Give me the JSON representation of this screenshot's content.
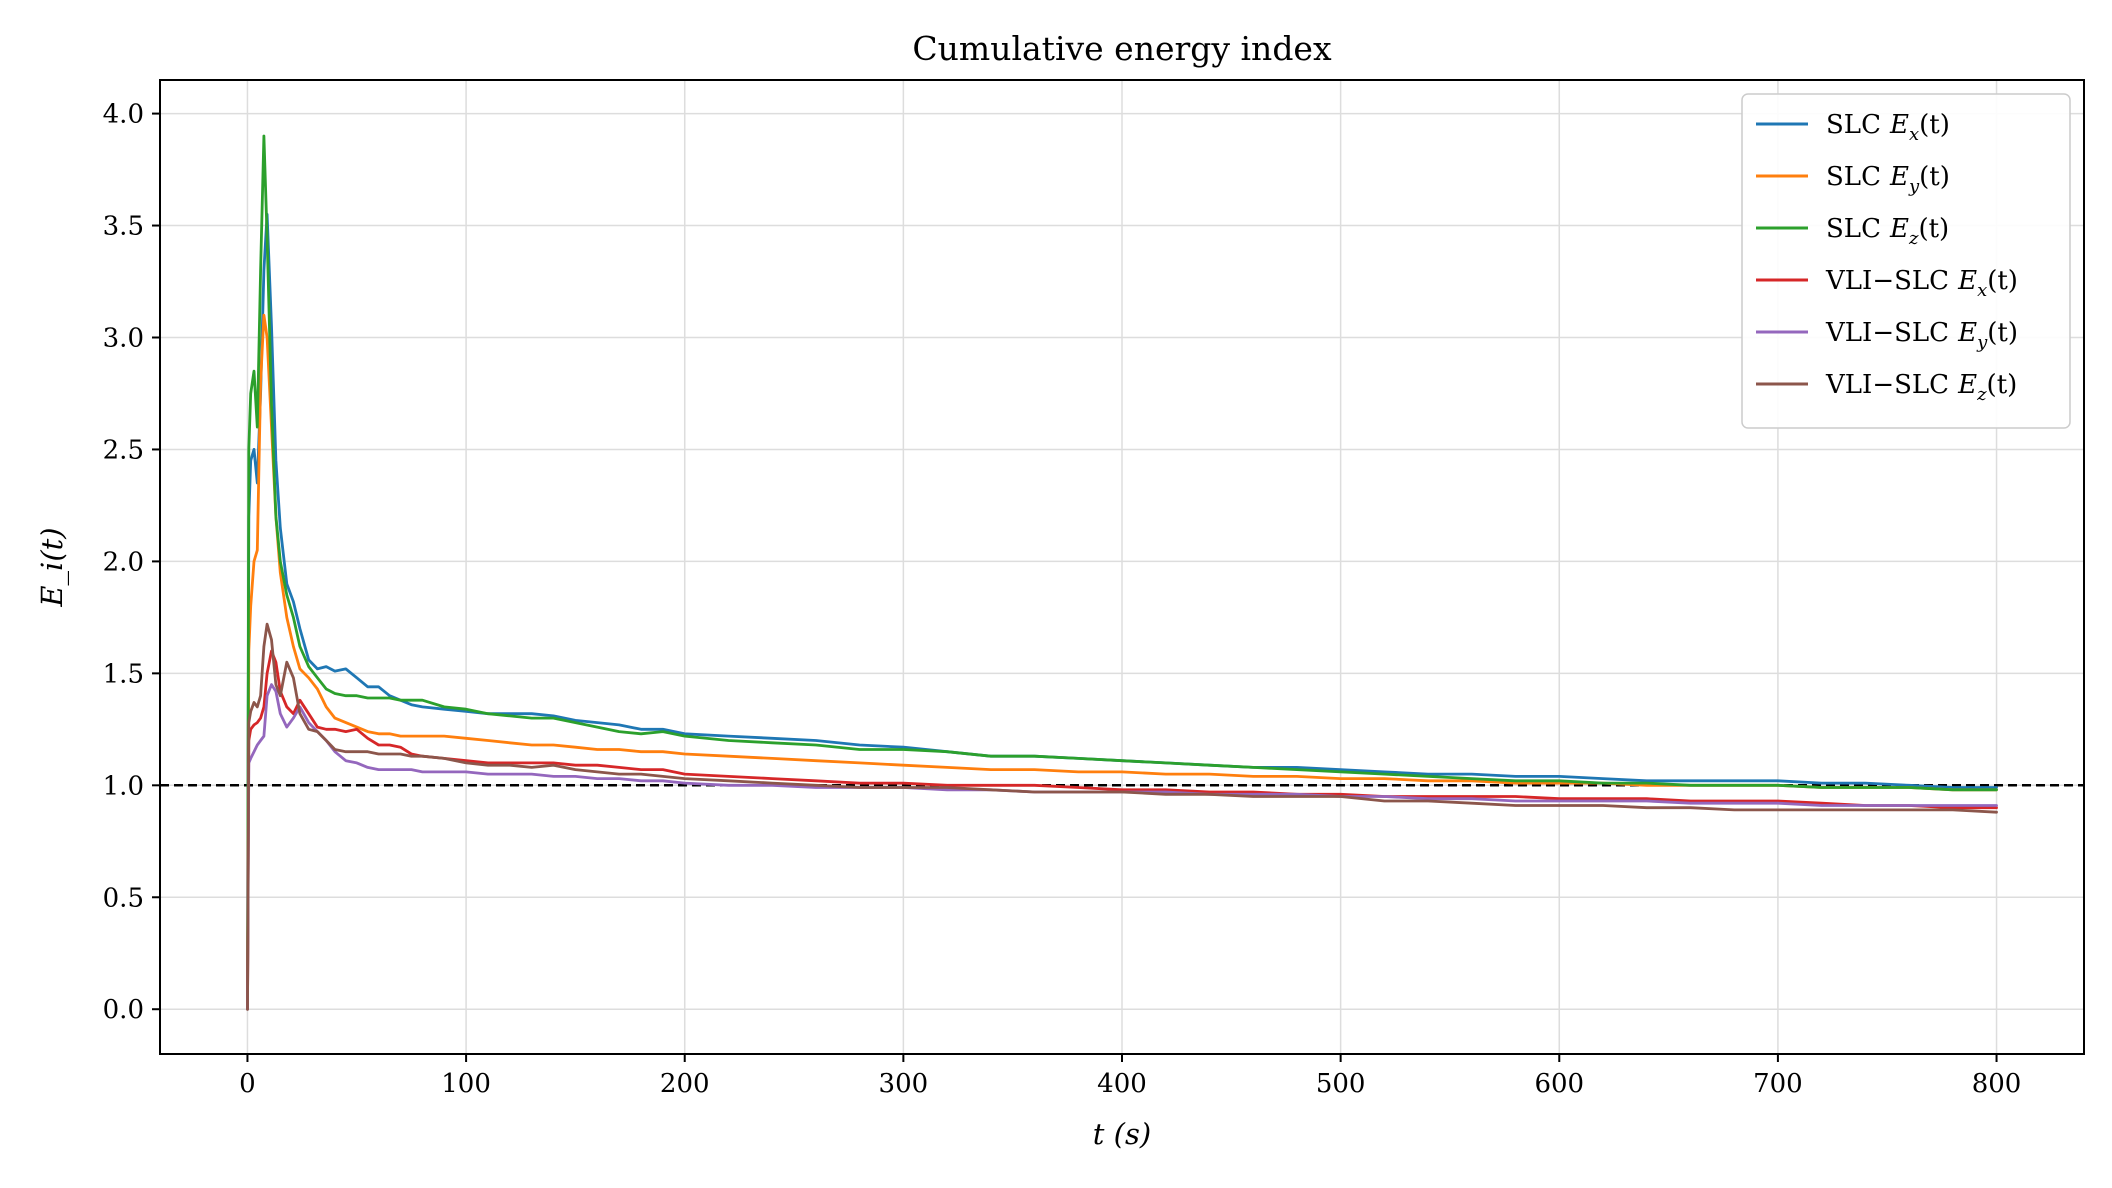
{
  "chart_data": {
    "type": "line",
    "title": "Cumulative energy index",
    "xlabel": "t (s)",
    "ylabel": "E_i(t)",
    "xlim": [
      -40,
      840
    ],
    "ylim": [
      -0.2,
      4.15
    ],
    "grid": true,
    "legend_position": "top-right",
    "x_ticks": [
      0,
      100,
      200,
      300,
      400,
      500,
      600,
      700,
      800
    ],
    "x_tick_labels": [
      "0",
      "100",
      "200",
      "300",
      "400",
      "500",
      "600",
      "700",
      "800"
    ],
    "y_ticks": [
      0.0,
      0.5,
      1.0,
      1.5,
      2.0,
      2.5,
      3.0,
      3.5,
      4.0
    ],
    "y_tick_labels": [
      "0.0",
      "0.5",
      "1.0",
      "1.5",
      "2.0",
      "2.5",
      "3.0",
      "3.5",
      "4.0"
    ],
    "reference_line": {
      "y": 1.0,
      "style": "dashed",
      "color": "#000000"
    },
    "series": [
      {
        "name": "SLC E_x(t)",
        "legend": "SLC",
        "sym": "E",
        "sub": "x",
        "arg": "(t)",
        "color": "#1f77b4",
        "x": [
          0,
          0.6,
          1.5,
          3,
          4.5,
          6,
          7.5,
          9,
          11,
          13,
          15,
          18,
          21,
          24,
          28,
          32,
          36,
          40,
          45,
          50,
          55,
          60,
          65,
          70,
          75,
          80,
          90,
          100,
          110,
          120,
          130,
          140,
          150,
          160,
          170,
          180,
          190,
          200,
          220,
          240,
          260,
          280,
          300,
          320,
          340,
          360,
          380,
          400,
          420,
          440,
          460,
          480,
          500,
          520,
          540,
          560,
          580,
          600,
          620,
          640,
          660,
          680,
          700,
          720,
          740,
          760,
          780,
          800
        ],
        "y": [
          0,
          2.2,
          2.45,
          2.5,
          2.35,
          2.75,
          3.3,
          3.55,
          3.05,
          2.45,
          2.15,
          1.9,
          1.82,
          1.7,
          1.56,
          1.52,
          1.53,
          1.51,
          1.52,
          1.48,
          1.44,
          1.44,
          1.4,
          1.38,
          1.36,
          1.35,
          1.34,
          1.33,
          1.32,
          1.32,
          1.32,
          1.31,
          1.29,
          1.28,
          1.27,
          1.25,
          1.25,
          1.23,
          1.22,
          1.21,
          1.2,
          1.18,
          1.17,
          1.15,
          1.13,
          1.13,
          1.12,
          1.11,
          1.1,
          1.09,
          1.08,
          1.08,
          1.07,
          1.06,
          1.05,
          1.05,
          1.04,
          1.04,
          1.03,
          1.02,
          1.02,
          1.02,
          1.02,
          1.01,
          1.01,
          1.0,
          0.99,
          0.99
        ]
      },
      {
        "name": "SLC E_y(t)",
        "legend": "SLC",
        "sym": "E",
        "sub": "y",
        "arg": "(t)",
        "color": "#ff7f0e",
        "x": [
          0,
          0.6,
          1.5,
          3,
          4.5,
          6,
          7.5,
          9,
          11,
          13,
          15,
          18,
          21,
          24,
          28,
          32,
          36,
          40,
          45,
          50,
          55,
          60,
          65,
          70,
          75,
          80,
          90,
          100,
          110,
          120,
          130,
          140,
          150,
          160,
          170,
          180,
          190,
          200,
          220,
          240,
          260,
          280,
          300,
          320,
          340,
          360,
          380,
          400,
          420,
          440,
          460,
          480,
          500,
          520,
          540,
          560,
          580,
          600,
          620,
          640,
          660,
          680,
          700,
          720,
          740,
          760,
          780,
          800
        ],
        "y": [
          0,
          1.6,
          1.8,
          2.0,
          2.05,
          2.8,
          3.1,
          3.0,
          2.6,
          2.2,
          1.95,
          1.75,
          1.62,
          1.52,
          1.48,
          1.43,
          1.35,
          1.3,
          1.28,
          1.26,
          1.24,
          1.23,
          1.23,
          1.22,
          1.22,
          1.22,
          1.22,
          1.21,
          1.2,
          1.19,
          1.18,
          1.18,
          1.17,
          1.16,
          1.16,
          1.15,
          1.15,
          1.14,
          1.13,
          1.12,
          1.11,
          1.1,
          1.09,
          1.08,
          1.07,
          1.07,
          1.06,
          1.06,
          1.05,
          1.05,
          1.04,
          1.04,
          1.03,
          1.03,
          1.02,
          1.02,
          1.01,
          1.01,
          1.01,
          1.0,
          1.0,
          1.0,
          1.0,
          0.99,
          0.99,
          0.99,
          0.98,
          0.98
        ]
      },
      {
        "name": "SLC E_z(t)",
        "legend": "SLC",
        "sym": "E",
        "sub": "z",
        "arg": "(t)",
        "color": "#2ca02c",
        "x": [
          0,
          0.6,
          1.5,
          3,
          4.5,
          6,
          7.5,
          9,
          11,
          13,
          15,
          18,
          21,
          24,
          28,
          32,
          36,
          40,
          45,
          50,
          55,
          60,
          65,
          70,
          75,
          80,
          90,
          100,
          110,
          120,
          130,
          140,
          150,
          160,
          170,
          180,
          190,
          200,
          220,
          240,
          260,
          280,
          300,
          320,
          340,
          360,
          380,
          400,
          420,
          440,
          460,
          480,
          500,
          520,
          540,
          560,
          580,
          600,
          620,
          640,
          660,
          680,
          700,
          720,
          740,
          760,
          780,
          800
        ],
        "y": [
          0,
          2.5,
          2.75,
          2.85,
          2.6,
          3.3,
          3.9,
          3.45,
          2.7,
          2.2,
          2.0,
          1.85,
          1.75,
          1.62,
          1.53,
          1.48,
          1.43,
          1.41,
          1.4,
          1.4,
          1.39,
          1.39,
          1.39,
          1.38,
          1.38,
          1.38,
          1.35,
          1.34,
          1.32,
          1.31,
          1.3,
          1.3,
          1.28,
          1.26,
          1.24,
          1.23,
          1.24,
          1.22,
          1.2,
          1.19,
          1.18,
          1.16,
          1.16,
          1.15,
          1.13,
          1.13,
          1.12,
          1.11,
          1.1,
          1.09,
          1.08,
          1.07,
          1.06,
          1.05,
          1.04,
          1.03,
          1.02,
          1.02,
          1.01,
          1.01,
          1.0,
          1.0,
          1.0,
          0.99,
          0.99,
          0.99,
          0.98,
          0.98
        ]
      },
      {
        "name": "VLI-SLC E_x(t)",
        "legend": "VLI−SLC",
        "sym": "E",
        "sub": "x",
        "arg": "(t)",
        "color": "#d62728",
        "x": [
          0,
          0.6,
          1.5,
          3,
          4.5,
          6,
          7.5,
          9,
          11,
          13,
          15,
          18,
          21,
          24,
          28,
          32,
          36,
          40,
          45,
          50,
          55,
          60,
          65,
          70,
          75,
          80,
          90,
          100,
          110,
          120,
          130,
          140,
          150,
          160,
          170,
          180,
          190,
          200,
          220,
          240,
          260,
          280,
          300,
          320,
          340,
          360,
          380,
          400,
          420,
          440,
          460,
          480,
          500,
          520,
          540,
          560,
          580,
          600,
          620,
          640,
          660,
          680,
          700,
          720,
          740,
          760,
          780,
          800
        ],
        "y": [
          0,
          1.2,
          1.25,
          1.27,
          1.28,
          1.3,
          1.35,
          1.5,
          1.6,
          1.55,
          1.42,
          1.35,
          1.32,
          1.38,
          1.32,
          1.26,
          1.25,
          1.25,
          1.24,
          1.25,
          1.21,
          1.18,
          1.18,
          1.17,
          1.14,
          1.13,
          1.12,
          1.11,
          1.1,
          1.1,
          1.1,
          1.1,
          1.09,
          1.09,
          1.08,
          1.07,
          1.07,
          1.05,
          1.04,
          1.03,
          1.02,
          1.01,
          1.01,
          1.0,
          1.0,
          1.0,
          0.99,
          0.98,
          0.98,
          0.97,
          0.97,
          0.96,
          0.96,
          0.95,
          0.95,
          0.95,
          0.95,
          0.94,
          0.94,
          0.94,
          0.93,
          0.93,
          0.93,
          0.92,
          0.91,
          0.91,
          0.9,
          0.9
        ]
      },
      {
        "name": "VLI-SLC E_y(t)",
        "legend": "VLI−SLC",
        "sym": "E",
        "sub": "y",
        "arg": "(t)",
        "color": "#9467bd",
        "x": [
          0,
          0.6,
          1.5,
          3,
          4.5,
          6,
          7.5,
          9,
          11,
          13,
          15,
          18,
          21,
          24,
          28,
          32,
          36,
          40,
          45,
          50,
          55,
          60,
          65,
          70,
          75,
          80,
          90,
          100,
          110,
          120,
          130,
          140,
          150,
          160,
          170,
          180,
          190,
          200,
          220,
          240,
          260,
          280,
          300,
          320,
          340,
          360,
          380,
          400,
          420,
          440,
          460,
          480,
          500,
          520,
          540,
          560,
          580,
          600,
          620,
          640,
          660,
          680,
          700,
          720,
          740,
          760,
          780,
          800
        ],
        "y": [
          0,
          1.1,
          1.12,
          1.15,
          1.18,
          1.2,
          1.22,
          1.4,
          1.45,
          1.42,
          1.32,
          1.26,
          1.3,
          1.35,
          1.28,
          1.24,
          1.2,
          1.15,
          1.11,
          1.1,
          1.08,
          1.07,
          1.07,
          1.07,
          1.07,
          1.06,
          1.06,
          1.06,
          1.05,
          1.05,
          1.05,
          1.04,
          1.04,
          1.03,
          1.03,
          1.02,
          1.02,
          1.01,
          1.0,
          1.0,
          0.99,
          0.99,
          0.99,
          0.98,
          0.98,
          0.97,
          0.97,
          0.97,
          0.97,
          0.96,
          0.96,
          0.96,
          0.95,
          0.95,
          0.94,
          0.94,
          0.93,
          0.93,
          0.93,
          0.93,
          0.92,
          0.92,
          0.92,
          0.91,
          0.91,
          0.91,
          0.91,
          0.91
        ]
      },
      {
        "name": "VLI-SLC E_z(t)",
        "legend": "VLI−SLC",
        "sym": "E",
        "sub": "z",
        "arg": "(t)",
        "color": "#8c564b",
        "x": [
          0,
          0.6,
          1.5,
          3,
          4.5,
          6,
          7.5,
          9,
          11,
          13,
          15,
          18,
          21,
          24,
          28,
          32,
          36,
          40,
          45,
          50,
          55,
          60,
          65,
          70,
          75,
          80,
          90,
          100,
          110,
          120,
          130,
          140,
          150,
          160,
          170,
          180,
          190,
          200,
          220,
          240,
          260,
          280,
          300,
          320,
          340,
          360,
          380,
          400,
          420,
          440,
          460,
          480,
          500,
          520,
          540,
          560,
          580,
          600,
          620,
          640,
          660,
          680,
          700,
          720,
          740,
          760,
          780,
          800
        ],
        "y": [
          0,
          1.28,
          1.33,
          1.37,
          1.35,
          1.4,
          1.62,
          1.72,
          1.65,
          1.45,
          1.4,
          1.55,
          1.48,
          1.32,
          1.25,
          1.24,
          1.2,
          1.16,
          1.15,
          1.15,
          1.15,
          1.14,
          1.14,
          1.14,
          1.13,
          1.13,
          1.12,
          1.1,
          1.09,
          1.09,
          1.08,
          1.09,
          1.07,
          1.06,
          1.05,
          1.05,
          1.04,
          1.03,
          1.02,
          1.01,
          1.0,
          0.99,
          0.99,
          0.99,
          0.98,
          0.97,
          0.97,
          0.97,
          0.96,
          0.96,
          0.95,
          0.95,
          0.95,
          0.93,
          0.93,
          0.92,
          0.91,
          0.91,
          0.91,
          0.9,
          0.9,
          0.89,
          0.89,
          0.89,
          0.89,
          0.89,
          0.89,
          0.88
        ]
      }
    ]
  }
}
